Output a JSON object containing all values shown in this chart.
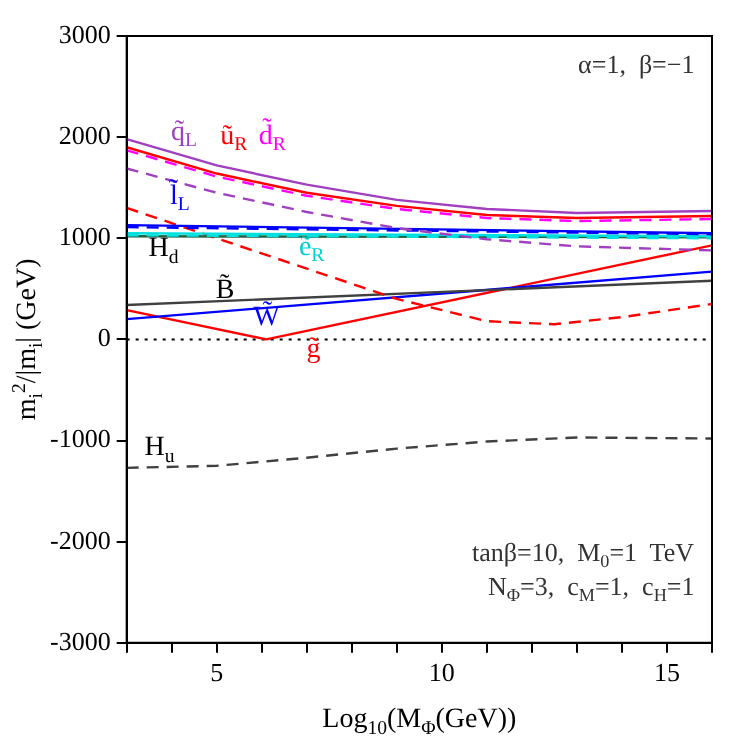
{
  "chart_data": {
    "type": "line",
    "xlabel": "Log$_{10}$(M$_{Φ}$(GeV))",
    "ylabel": "m$_{i}$$^{2}$/|m$_{i}$| (GeV)",
    "xlim": [
      3,
      16
    ],
    "xticks": [
      {
        "value": 3,
        "label": null
      },
      {
        "value": 4,
        "label": null
      },
      5,
      {
        "value": 6,
        "label": null
      },
      {
        "value": 7,
        "label": null
      },
      {
        "value": 8,
        "label": null
      },
      {
        "value": 9,
        "label": null
      },
      10,
      {
        "value": 11,
        "label": null
      },
      {
        "value": 12,
        "label": null
      },
      {
        "value": 13,
        "label": null
      },
      {
        "value": 14,
        "label": null
      },
      15,
      {
        "value": 16,
        "label": null
      }
    ],
    "ylim": [
      -3000,
      3000
    ],
    "yticks": [
      -3000,
      -2000,
      -1000,
      0,
      1000,
      2000,
      3000
    ],
    "marker": "none",
    "series": [
      {
        "color": "#a040c0",
        "line_style": "solid",
        "x": [
          3,
          5,
          7,
          9,
          11,
          13,
          16
        ],
        "values": [
          1980,
          1720,
          1530,
          1380,
          1290,
          1250,
          1270
        ]
      },
      {
        "color": "#ff0000",
        "line_style": "solid",
        "x": [
          3,
          5,
          7,
          9,
          11,
          13,
          16
        ],
        "values": [
          1900,
          1640,
          1450,
          1320,
          1230,
          1200,
          1220
        ]
      },
      {
        "color": "#ff00ff",
        "line_style": "dashed",
        "x": [
          3,
          5,
          7,
          9,
          11,
          13,
          16
        ],
        "values": [
          1870,
          1610,
          1420,
          1290,
          1200,
          1170,
          1190
        ]
      },
      {
        "color": "#a040c0",
        "line_style": "dashed",
        "x": [
          3,
          5,
          7,
          9,
          11,
          13,
          16
        ],
        "values": [
          1690,
          1450,
          1260,
          1100,
          990,
          920,
          880
        ]
      },
      {
        "color": "#0000ff",
        "line_style": "solid",
        "x": [
          3,
          16
        ],
        "values": [
          1130,
          1050
        ]
      },
      {
        "color": "#0000ff",
        "line_style": "dashed",
        "x": [
          3,
          16
        ],
        "values": [
          1110,
          1040
        ]
      },
      {
        "color": "#00e0e0",
        "line_style": "solid",
        "x": [
          3,
          16
        ],
        "values": [
          1050,
          1020
        ]
      },
      {
        "color": "#00e0e0",
        "line_style": "dashed",
        "x": [
          3,
          16
        ],
        "values": [
          1030,
          1000
        ]
      },
      {
        "color": "#206040",
        "line_style": "solid",
        "x": [
          3,
          16
        ],
        "values": [
          1020,
          1010
        ]
      },
      {
        "color": "#ff0000",
        "line_style": "dashed",
        "x": [
          3,
          5,
          7,
          9,
          11,
          12.5,
          14,
          16
        ],
        "values": [
          1300,
          1000,
          700,
          400,
          180,
          150,
          220,
          350
        ]
      },
      {
        "color": "#404040",
        "line_style": "solid",
        "x": [
          3,
          16
        ],
        "values": [
          340,
          580
        ]
      },
      {
        "color": "#0000ff",
        "line_style": "solid",
        "x": [
          3,
          16
        ],
        "values": [
          200,
          670
        ]
      },
      {
        "color": "#ff0000",
        "line_style": "solid",
        "x": [
          3,
          6.1,
          16
        ],
        "values": [
          290,
          0,
          930
        ]
      },
      {
        "color": "#404040",
        "line_style": "dashed",
        "x": [
          3,
          5,
          7,
          9,
          11,
          13,
          16
        ],
        "values": [
          -1270,
          -1250,
          -1170,
          -1080,
          -1010,
          -970,
          -980
        ]
      }
    ],
    "ref_lines": [
      {
        "axis": "y",
        "value": 0,
        "color": "#000000",
        "line_style": "dotted"
      }
    ],
    "annotations": [
      "q̃$_{L}$",
      "ũ$_{R}$",
      "d̃$_{R}$",
      "l̃$_{L}$",
      "ẽ$_{R}$",
      "H$_{d}$",
      "B̃",
      "W̃",
      "g̃",
      "H$_{u}$",
      "α=1,  β=−1",
      "tanβ=10,  M$_{0}$=1  TeV",
      "N$_{Φ}$=3,  c$_{M}$=1,  c$_{H}$=1"
    ]
  }
}
